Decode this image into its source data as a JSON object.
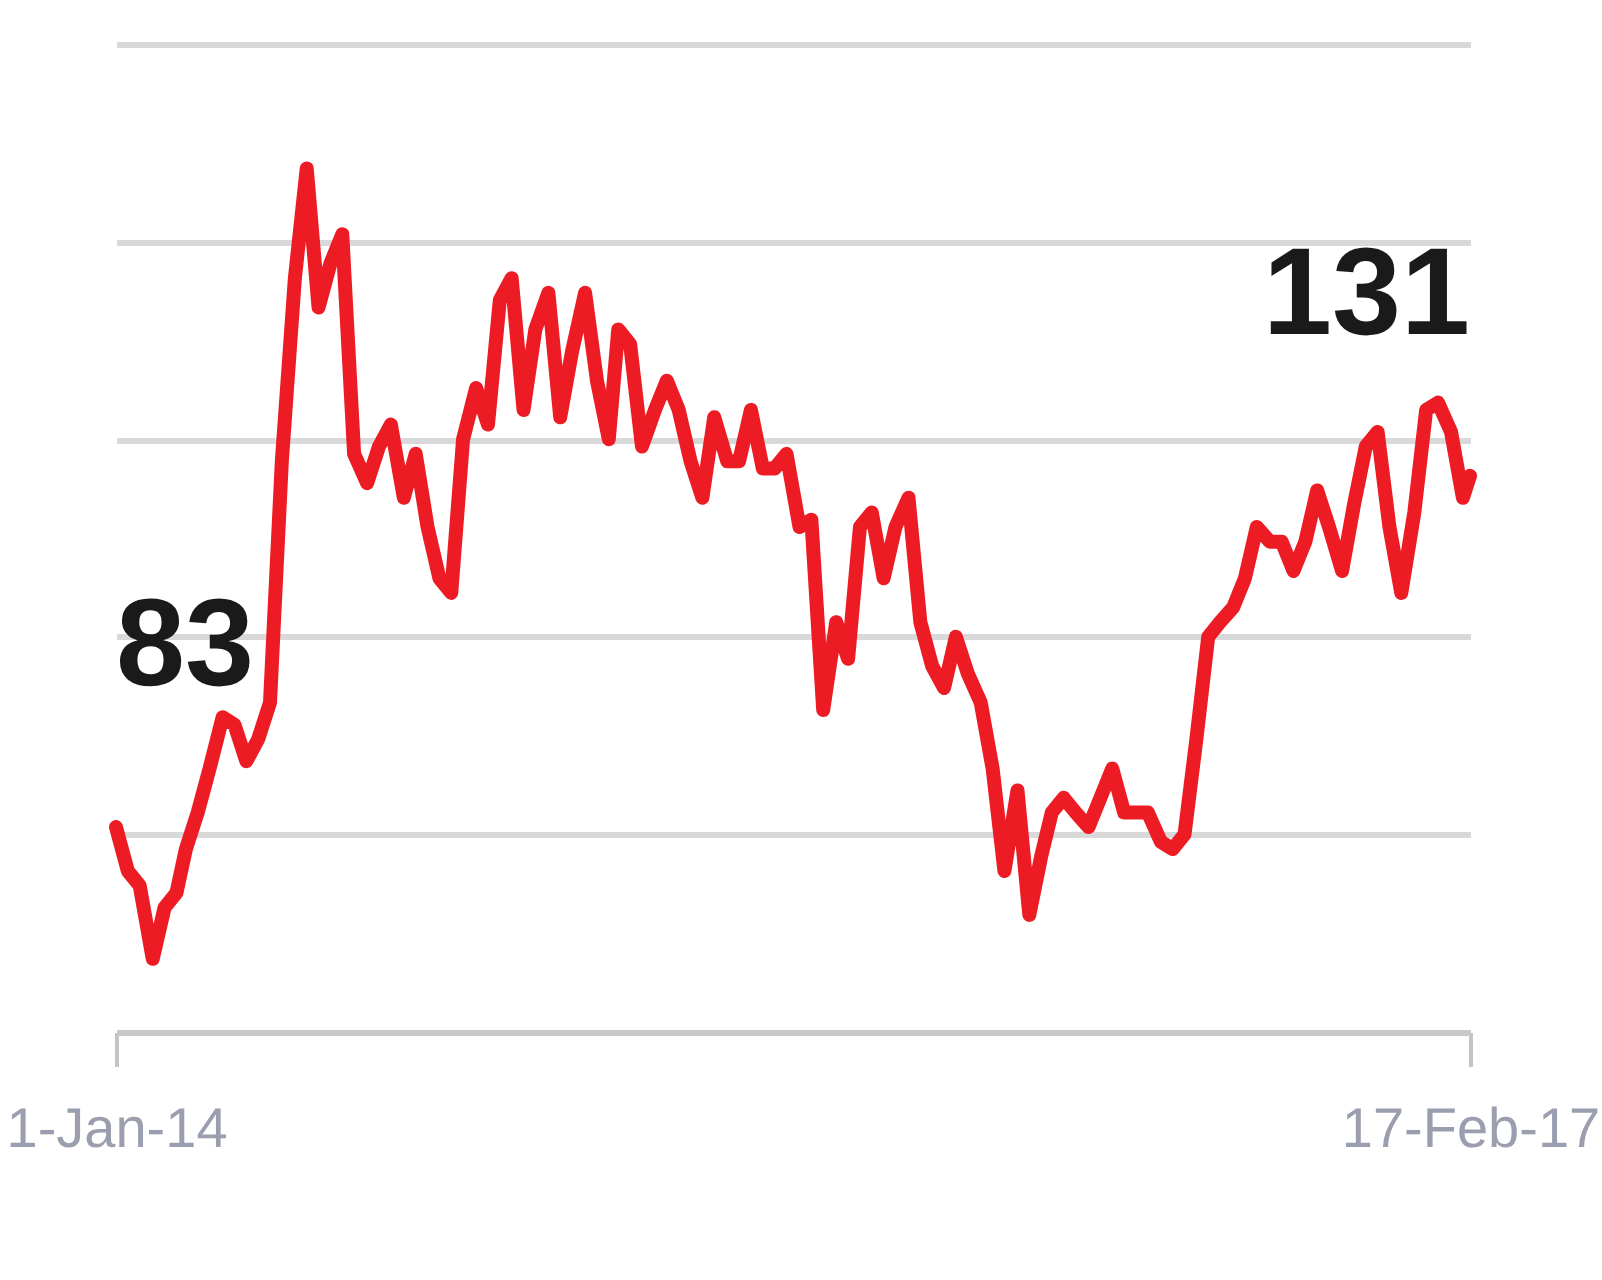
{
  "chart_data": {
    "type": "line",
    "color": "#ed1c24",
    "x": [
      "2014-01-01",
      "2014-01-11",
      "2014-01-21",
      "2014-02-01",
      "2014-02-11",
      "2014-02-21",
      "2014-03-01",
      "2014-03-11",
      "2014-03-21",
      "2014-04-01",
      "2014-04-11",
      "2014-04-21",
      "2014-05-01",
      "2014-05-11",
      "2014-05-21",
      "2014-06-01",
      "2014-06-11",
      "2014-06-21",
      "2014-07-01",
      "2014-07-11",
      "2014-07-21",
      "2014-08-01",
      "2014-08-11",
      "2014-08-21",
      "2014-09-01",
      "2014-09-11",
      "2014-09-21",
      "2014-10-01",
      "2014-10-11",
      "2014-10-21",
      "2014-11-01",
      "2014-11-11",
      "2014-11-21",
      "2014-12-01",
      "2014-12-11",
      "2014-12-21",
      "2015-01-01",
      "2015-01-11",
      "2015-01-21",
      "2015-02-01",
      "2015-02-11",
      "2015-02-21",
      "2015-03-01",
      "2015-03-11",
      "2015-03-21",
      "2015-04-01",
      "2015-04-11",
      "2015-04-21",
      "2015-05-01",
      "2015-05-11",
      "2015-05-21",
      "2015-06-01",
      "2015-06-11",
      "2015-06-21",
      "2015-07-01",
      "2015-07-11",
      "2015-07-21",
      "2015-08-01",
      "2015-08-11",
      "2015-08-21",
      "2015-09-01",
      "2015-09-11",
      "2015-09-21",
      "2015-10-01",
      "2015-10-11",
      "2015-10-21",
      "2015-11-01",
      "2015-11-11",
      "2015-11-21",
      "2015-12-01",
      "2015-12-11",
      "2015-12-21",
      "2016-01-01",
      "2016-01-11",
      "2016-01-21",
      "2016-02-01",
      "2016-02-11",
      "2016-02-21",
      "2016-03-01",
      "2016-03-11",
      "2016-03-21",
      "2016-04-01",
      "2016-04-11",
      "2016-04-21",
      "2016-05-01",
      "2016-05-11",
      "2016-05-21",
      "2016-06-01",
      "2016-06-11",
      "2016-06-21",
      "2016-07-01",
      "2016-07-11",
      "2016-07-21",
      "2016-08-01",
      "2016-08-11",
      "2016-08-21",
      "2016-09-01",
      "2016-09-11",
      "2016-09-21",
      "2016-10-01",
      "2016-10-11",
      "2016-10-21",
      "2016-11-01",
      "2016-11-11",
      "2016-11-21",
      "2016-12-01",
      "2016-12-11",
      "2016-12-21",
      "2017-01-01",
      "2017-01-11",
      "2017-01-21",
      "2017-02-01",
      "2017-02-11",
      "2017-02-17"
    ],
    "values": [
      83,
      77,
      75,
      65,
      72,
      74,
      80,
      85,
      91,
      98,
      97,
      92,
      95,
      100,
      133,
      158,
      173,
      154,
      160,
      164,
      134,
      130,
      135,
      138,
      128,
      134,
      124,
      117,
      115,
      136,
      143,
      138,
      155,
      158,
      140,
      151,
      156,
      139,
      148,
      156,
      144,
      136,
      151,
      149,
      135,
      140,
      144,
      140,
      133,
      128,
      139,
      133,
      133,
      140,
      132,
      132,
      134,
      124,
      125,
      99,
      111,
      106,
      124,
      126,
      117,
      124,
      128,
      111,
      105,
      102,
      109,
      104,
      100,
      91,
      77,
      88,
      71,
      79,
      85,
      87,
      85,
      83,
      87,
      91,
      85,
      85,
      85,
      81,
      80,
      82,
      95,
      109,
      111,
      113,
      117,
      124,
      122,
      122,
      118,
      122,
      129,
      124,
      118,
      127,
      135,
      137,
      124,
      115,
      126,
      140,
      141,
      137,
      128,
      131
    ],
    "value_labels": [
      "83",
      null,
      null,
      null,
      null,
      null,
      null,
      null,
      null,
      null,
      null,
      null,
      null,
      null,
      null,
      null,
      null,
      null,
      null,
      null,
      null,
      null,
      null,
      null,
      null,
      null,
      null,
      null,
      null,
      null,
      null,
      null,
      null,
      null,
      null,
      null,
      null,
      null,
      null,
      null,
      null,
      null,
      null,
      null,
      null,
      null,
      null,
      null,
      null,
      null,
      null,
      null,
      null,
      null,
      null,
      null,
      null,
      null,
      null,
      null,
      null,
      null,
      null,
      null,
      null,
      null,
      null,
      null,
      null,
      null,
      null,
      null,
      null,
      null,
      null,
      null,
      null,
      null,
      null,
      null,
      null,
      null,
      null,
      null,
      null,
      null,
      null,
      null,
      null,
      null,
      null,
      null,
      null,
      null,
      null,
      null,
      null,
      null,
      null,
      null,
      null,
      null,
      null,
      null,
      null,
      null,
      null,
      null,
      null,
      null,
      null,
      null,
      null,
      "131"
    ],
    "xlim": [
      "2014-01-01",
      "2017-02-17"
    ],
    "xticks": [
      {
        "value": "2014-01-01",
        "label": "1-Jan-14"
      },
      {
        "value": "2017-02-17",
        "label": "17-Feb-17"
      }
    ],
    "ylim": [
      55,
      190
    ],
    "yticks": [
      {
        "value": 82,
        "label": null
      },
      {
        "value": 109,
        "label": null
      },
      {
        "value": 136,
        "label": null
      },
      {
        "value": 163,
        "label": null
      },
      {
        "value": 190,
        "label": null
      }
    ],
    "grid": "y",
    "tick_labels": "x"
  }
}
